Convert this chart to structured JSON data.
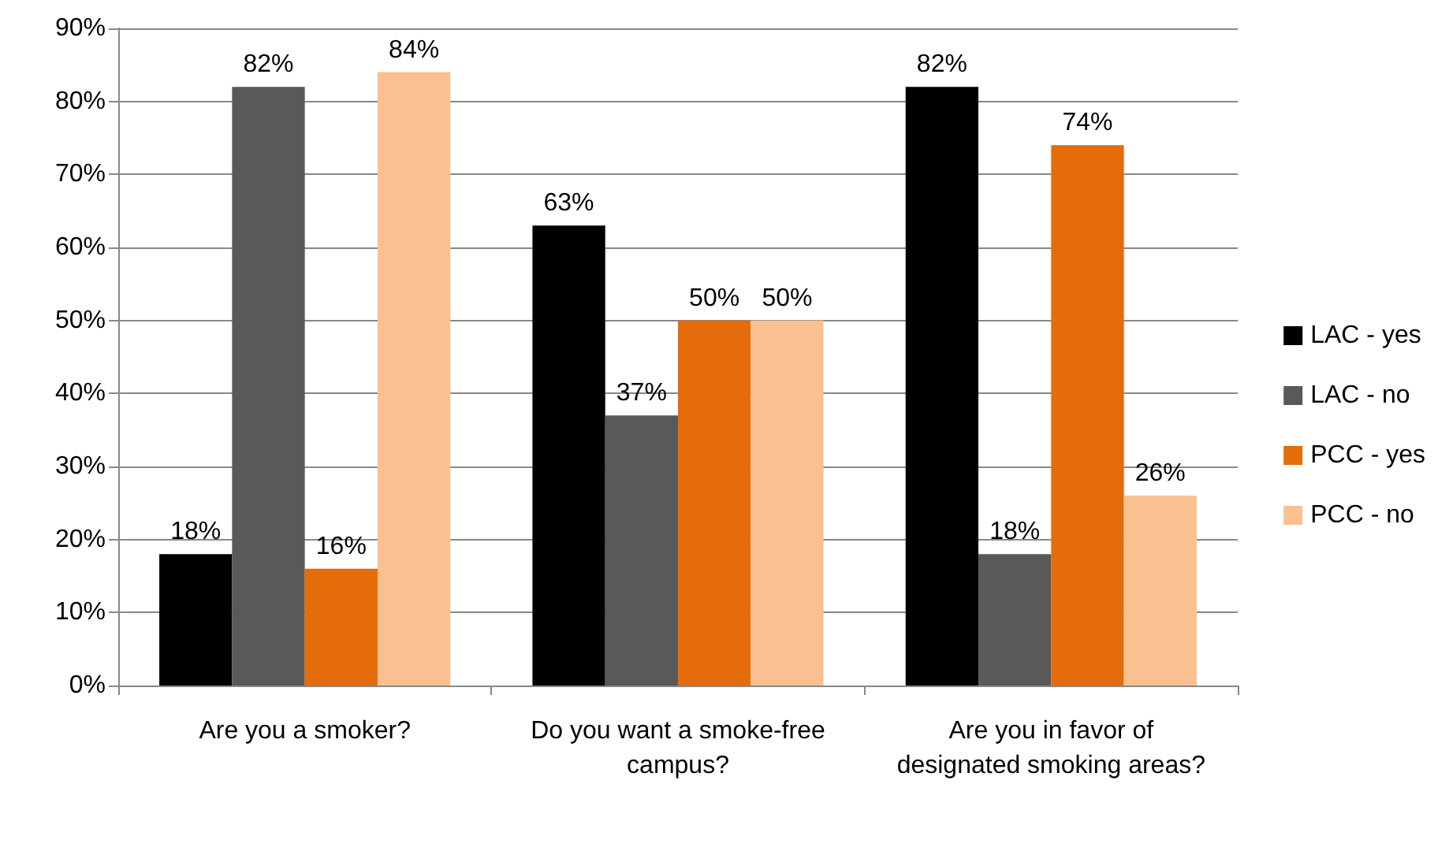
{
  "chart_data": {
    "type": "bar",
    "categories": [
      "Are you a smoker?",
      "Do you want a smoke-free campus?",
      "Are you in favor of designated smoking areas?"
    ],
    "series": [
      {
        "name": "LAC - yes",
        "color": "#000000",
        "values": [
          18,
          63,
          82
        ],
        "value_labels": [
          "18%",
          "63%",
          "82%"
        ]
      },
      {
        "name": "LAC - no",
        "color": "#595959",
        "values": [
          82,
          37,
          18
        ],
        "value_labels": [
          "82%",
          "37%",
          "18%"
        ]
      },
      {
        "name": "PCC - yes",
        "color": "#e46c0a",
        "values": [
          16,
          50,
          74
        ],
        "value_labels": [
          "16%",
          "50%",
          "74%"
        ]
      },
      {
        "name": "PCC - no",
        "color": "#fac090",
        "values": [
          84,
          50,
          26
        ],
        "value_labels": [
          "84%",
          "50%",
          "26%"
        ]
      }
    ],
    "ylim": [
      0,
      90
    ],
    "yticks": [
      {
        "value": 0,
        "label": "0%"
      },
      {
        "value": 10,
        "label": "10%"
      },
      {
        "value": 20,
        "label": "20%"
      },
      {
        "value": 30,
        "label": "30%"
      },
      {
        "value": 40,
        "label": "40%"
      },
      {
        "value": 50,
        "label": "50%"
      },
      {
        "value": 60,
        "label": "60%"
      },
      {
        "value": 70,
        "label": "70%"
      },
      {
        "value": 80,
        "label": "80%"
      },
      {
        "value": 90,
        "label": "90%"
      }
    ],
    "grid": "y",
    "legend": "right"
  }
}
